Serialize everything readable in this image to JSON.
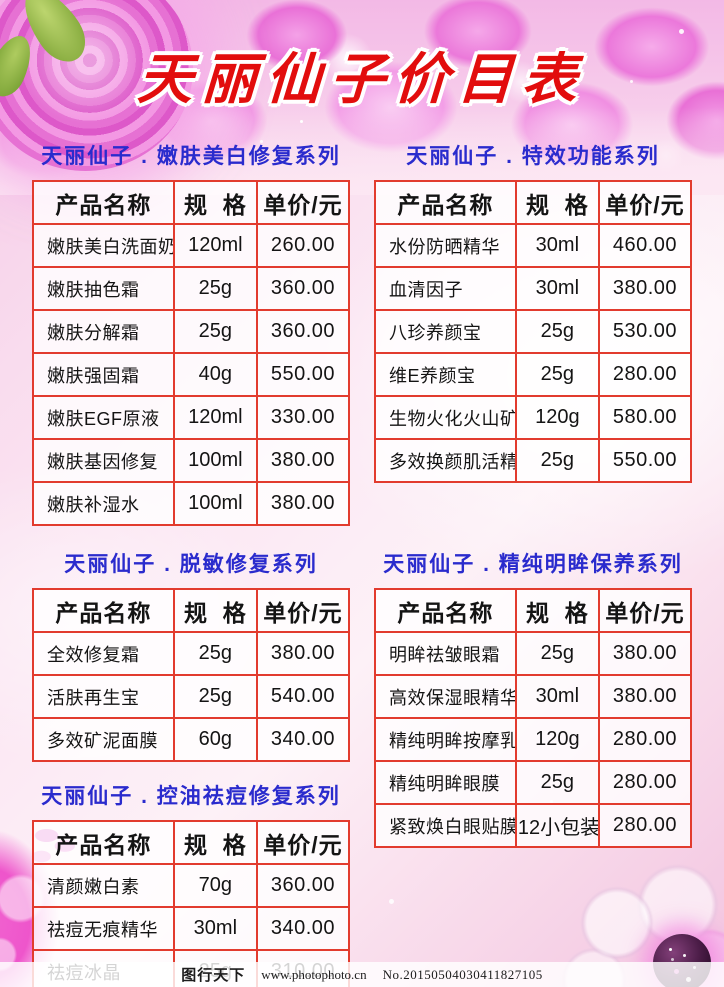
{
  "title": "天丽仙子价目表",
  "table_headers": [
    "产品名称",
    "规  格",
    "单价/元"
  ],
  "sections": [
    {
      "title": "天丽仙子 . 嫩肤美白修复系列",
      "rows": [
        [
          "嫩肤美白洗面奶",
          "120ml",
          "260.00"
        ],
        [
          "嫩肤抽色霜",
          "25g",
          "360.00"
        ],
        [
          "嫩肤分解霜",
          "25g",
          "360.00"
        ],
        [
          "嫩肤强固霜",
          "40g",
          "550.00"
        ],
        [
          "嫩肤EGF原液",
          "120ml",
          "330.00"
        ],
        [
          "嫩肤基因修复",
          "100ml",
          "380.00"
        ],
        [
          "嫩肤补湿水",
          "100ml",
          "380.00"
        ]
      ]
    },
    {
      "title": "天丽仙子 . 特效功能系列",
      "rows": [
        [
          "水份防晒精华",
          "30ml",
          "460.00"
        ],
        [
          "血清因子",
          "30ml",
          "380.00"
        ],
        [
          "八珍养颜宝",
          "25g",
          "530.00"
        ],
        [
          "维E养颜宝",
          "25g",
          "280.00"
        ],
        [
          "生物火化火山矿泥",
          "120g",
          "580.00"
        ],
        [
          "多效换颜肌活精",
          "25g",
          "550.00"
        ]
      ]
    },
    {
      "title": "天丽仙子 . 脱敏修复系列",
      "rows": [
        [
          "全效修复霜",
          "25g",
          "380.00"
        ],
        [
          "活肤再生宝",
          "25g",
          "540.00"
        ],
        [
          "多效矿泥面膜",
          "60g",
          "340.00"
        ]
      ]
    },
    {
      "title": "天丽仙子 . 精纯明眸保养系列",
      "rows": [
        [
          "明眸祛皱眼霜",
          "25g",
          "380.00"
        ],
        [
          "高效保湿眼精华",
          "30ml",
          "380.00"
        ],
        [
          "精纯明眸按摩乳",
          "120g",
          "280.00"
        ],
        [
          "精纯明眸眼膜",
          "25g",
          "280.00"
        ],
        [
          "紧致焕白眼贴膜",
          "12小包装",
          "280.00"
        ]
      ]
    },
    {
      "title": "天丽仙子 . 控油祛痘修复系列",
      "rows": [
        [
          "清颜嫩白素",
          "70g",
          "360.00"
        ],
        [
          "祛痘无痕精华",
          "30ml",
          "340.00"
        ],
        [
          "祛痘冰晶",
          "25g",
          "310.00"
        ]
      ]
    }
  ],
  "watermark": {
    "brand": "图行天下",
    "site": "www.photophoto.cn",
    "number": "No.20150504030411827105"
  },
  "colors": {
    "title_red": "#e20d0d",
    "section_blue": "#2a2bcd",
    "table_border_red": "#e23b2e",
    "background_pink": "#f9dcee"
  }
}
